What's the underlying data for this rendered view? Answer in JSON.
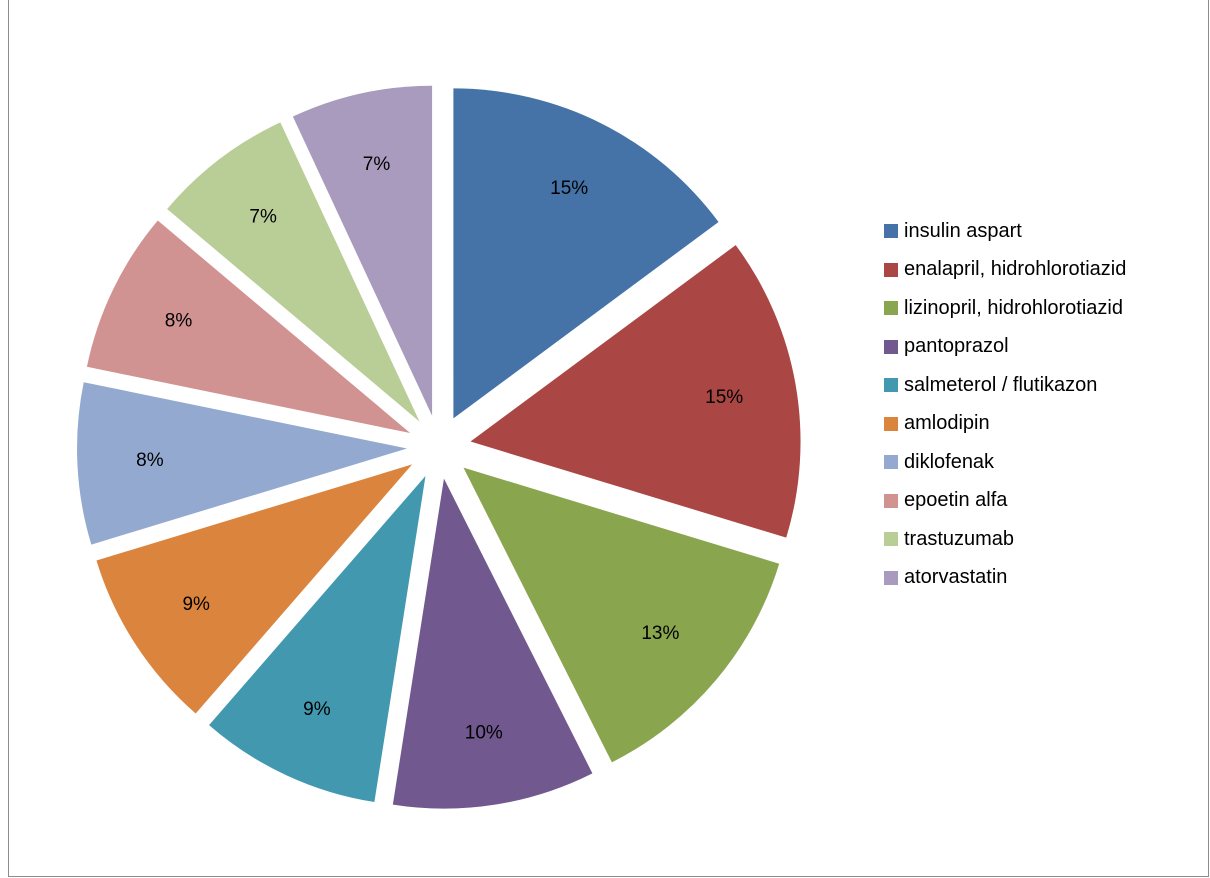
{
  "chart_data": {
    "type": "pie",
    "exploded": true,
    "legend_position": "right",
    "series": [
      {
        "name": "insulin aspart",
        "value": 15,
        "label": "15%",
        "color": "#4572A7"
      },
      {
        "name": "enalapril, hidrohlorotiazid",
        "value": 15,
        "label": "15%",
        "color": "#AA4643"
      },
      {
        "name": "lizinopril, hidrohlorotiazid",
        "value": 13,
        "label": "13%",
        "color": "#89A54E"
      },
      {
        "name": "pantoprazol",
        "value": 10,
        "label": "10%",
        "color": "#71588F"
      },
      {
        "name": "salmeterol / flutikazon",
        "value": 9,
        "label": "9%",
        "color": "#4198AF"
      },
      {
        "name": "amlodipin",
        "value": 9,
        "label": "9%",
        "color": "#DB843D"
      },
      {
        "name": "diklofenak",
        "value": 8,
        "label": "8%",
        "color": "#93A9CF"
      },
      {
        "name": "epoetin alfa",
        "value": 8,
        "label": "8%",
        "color": "#D19392"
      },
      {
        "name": "trastuzumab",
        "value": 7,
        "label": "7%",
        "color": "#B9CD96"
      },
      {
        "name": "atorvastatin",
        "value": 7,
        "label": "7%",
        "color": "#A99BBD"
      }
    ]
  }
}
